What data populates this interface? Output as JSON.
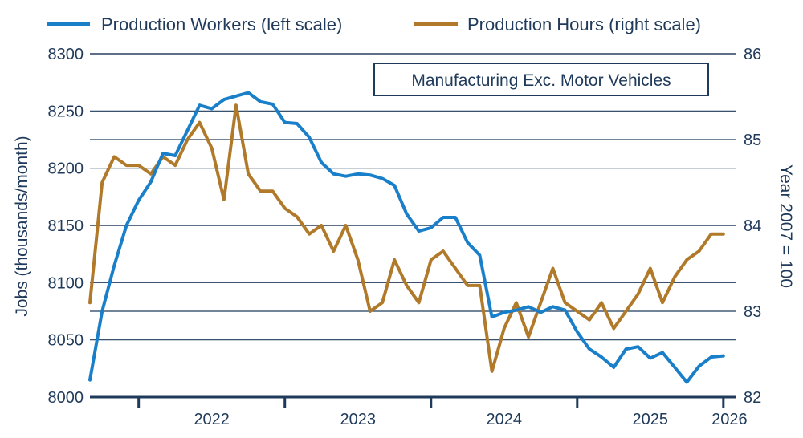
{
  "chart_data": {
    "type": "line",
    "annotation": "Manufacturing Exc. Motor Vehicles",
    "ylabel_left": "Jobs (thousands/month)",
    "ylabel_right": "Year 2007 = 100",
    "ylim_left": [
      8000,
      8300
    ],
    "ylim_right": [
      82,
      86
    ],
    "yticks_left": [
      8000,
      8050,
      8100,
      8150,
      8200,
      8250,
      8300
    ],
    "yticks_right": [
      82,
      83,
      84,
      85,
      86
    ],
    "year_labels": [
      "2022",
      "2023",
      "2024",
      "2025",
      "2026"
    ],
    "grid": true,
    "legend_position": "top",
    "series": [
      {
        "name": "Production Workers (left scale)",
        "axis": "left",
        "color": "#1a7fc9",
        "x": [
          "2021-09",
          "2021-10",
          "2021-11",
          "2021-12",
          "2022-01",
          "2022-02",
          "2022-03",
          "2022-04",
          "2022-05",
          "2022-06",
          "2022-07",
          "2022-08",
          "2022-09",
          "2022-10",
          "2022-11",
          "2022-12",
          "2023-01",
          "2023-02",
          "2023-03",
          "2023-04",
          "2023-05",
          "2023-06",
          "2023-07",
          "2023-08",
          "2023-09",
          "2023-10",
          "2023-11",
          "2023-12",
          "2024-01",
          "2024-02",
          "2024-03",
          "2024-04",
          "2024-05",
          "2024-06",
          "2024-07",
          "2024-08",
          "2024-09",
          "2024-10",
          "2024-11",
          "2024-12",
          "2025-01",
          "2025-02",
          "2025-03",
          "2025-04",
          "2025-05",
          "2025-06",
          "2025-07",
          "2025-08",
          "2025-09",
          "2025-10",
          "2025-11",
          "2025-12",
          "2026-01"
        ],
        "values": [
          8015,
          8075,
          8115,
          8150,
          8172,
          8188,
          8213,
          8211,
          8233,
          8255,
          8252,
          8260,
          8263,
          8266,
          8258,
          8256,
          8240,
          8239,
          8227,
          8205,
          8195,
          8193,
          8195,
          8194,
          8191,
          8185,
          8160,
          8145,
          8148,
          8157,
          8157,
          8135,
          8124,
          8070,
          8074,
          8076,
          8079,
          8074,
          8079,
          8076,
          8057,
          8042,
          8035,
          8026,
          8042,
          8044,
          8034,
          8039,
          8026,
          8013,
          8027,
          8035,
          8036
        ]
      },
      {
        "name": "Production Hours (right scale)",
        "axis": "right",
        "color": "#b07a2a",
        "x": [
          "2021-09",
          "2021-10",
          "2021-11",
          "2021-12",
          "2022-01",
          "2022-02",
          "2022-03",
          "2022-04",
          "2022-05",
          "2022-06",
          "2022-07",
          "2022-08",
          "2022-09",
          "2022-10",
          "2022-11",
          "2022-12",
          "2023-01",
          "2023-02",
          "2023-03",
          "2023-04",
          "2023-05",
          "2023-06",
          "2023-07",
          "2023-08",
          "2023-09",
          "2023-10",
          "2023-11",
          "2023-12",
          "2024-01",
          "2024-02",
          "2024-03",
          "2024-04",
          "2024-05",
          "2024-06",
          "2024-07",
          "2024-08",
          "2024-09",
          "2024-10",
          "2024-11",
          "2024-12",
          "2025-01",
          "2025-02",
          "2025-03",
          "2025-04",
          "2025-05",
          "2025-06",
          "2025-07",
          "2025-08",
          "2025-09",
          "2025-10",
          "2025-11",
          "2025-12",
          "2026-01"
        ],
        "values": [
          83.1,
          84.5,
          84.8,
          84.7,
          84.7,
          84.6,
          84.8,
          84.7,
          85.0,
          85.2,
          84.9,
          84.3,
          85.4,
          84.6,
          84.4,
          84.4,
          84.2,
          84.1,
          83.9,
          84.0,
          83.7,
          84.0,
          83.6,
          83.0,
          83.1,
          83.6,
          83.3,
          83.1,
          83.6,
          83.7,
          83.5,
          83.3,
          83.3,
          82.3,
          82.8,
          83.1,
          82.7,
          83.1,
          83.5,
          83.1,
          83.0,
          82.9,
          83.1,
          82.8,
          83.0,
          83.2,
          83.5,
          83.1,
          83.4,
          83.6,
          83.7,
          83.9,
          83.9
        ]
      }
    ]
  }
}
